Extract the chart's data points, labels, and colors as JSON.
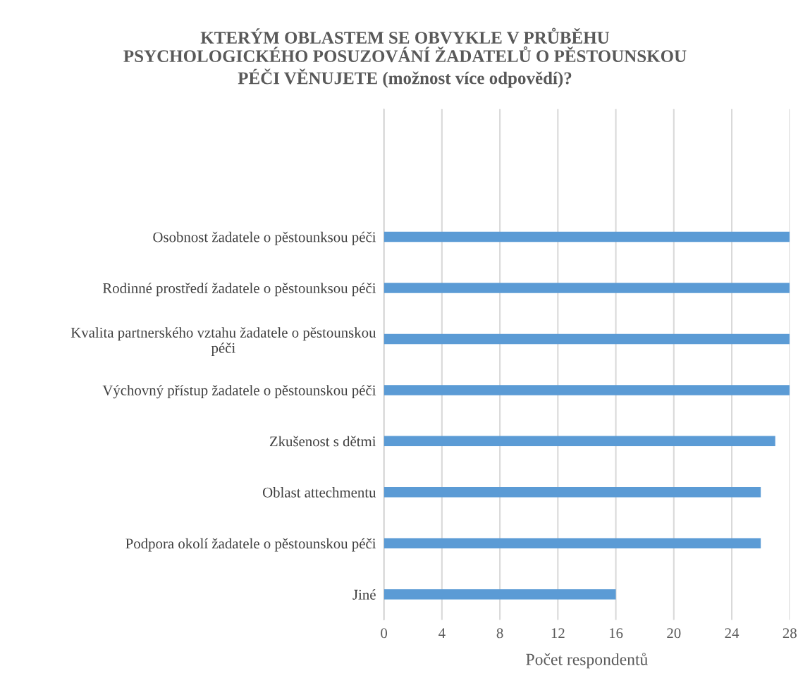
{
  "chart_data": {
    "type": "bar",
    "orientation": "horizontal",
    "title": "KTERÝM OBLASTEM SE OBVYKLE V PRŮBĚHU PSYCHOLOGICKÉHO POSUZOVÁNÍ ŽADATELŮ O PĚSTOUNSKOU PÉČI VĚNUJETE (možnost více odpovědí)?",
    "xlabel": "Počet respondentů",
    "categories": [
      null,
      null,
      "Osobnost žadatele o pěstounksou péči",
      "Rodinné prostředí žadatele o pěstounksou péči",
      "Kvalita partnerského vztahu žadatele o pěstounskou péči",
      "Výchovný přístup žadatele o pěstounskou péči",
      "Zkušenost s dětmi",
      "Oblast attechmentu",
      "Podpora okolí žadatele o pěstounskou péči",
      "Jiné"
    ],
    "values": [
      null,
      null,
      28,
      28,
      28,
      28,
      27,
      26,
      26,
      16
    ],
    "color": "#5b9bd5",
    "xlim": [
      0,
      28
    ],
    "xticks": [
      0,
      4,
      8,
      12,
      16,
      20,
      24,
      28
    ],
    "grid": "x"
  }
}
